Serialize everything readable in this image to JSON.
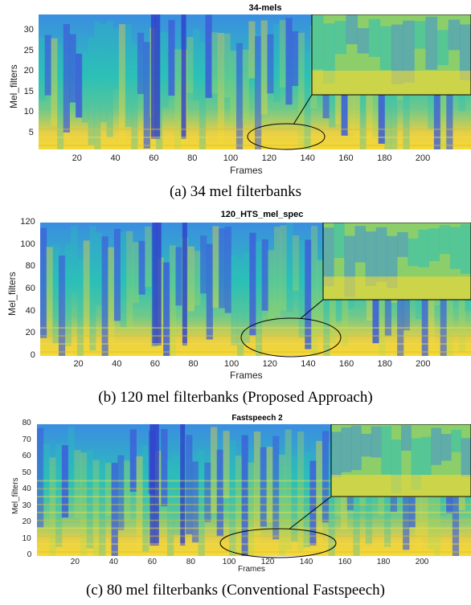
{
  "chart_data": [
    {
      "type": "heatmap",
      "title": "34-mels",
      "xlabel": "Frames",
      "ylabel": "Mel_filters",
      "x_ticks": [
        20,
        40,
        60,
        80,
        100,
        120,
        140,
        160,
        180,
        200
      ],
      "y_ticks": [
        5,
        10,
        15,
        20,
        25,
        30
      ],
      "xlim": [
        0,
        225
      ],
      "ylim": [
        1,
        34
      ],
      "caption": "(a) 34 mel filterbanks",
      "colors": {
        "low": "#3d5fd9",
        "mid": "#2cc0b8",
        "high": "#f6d935"
      }
    },
    {
      "type": "heatmap",
      "title": "120_HTS_mel_spec",
      "xlabel": "Frames",
      "ylabel": "Mel_filters",
      "x_ticks": [
        20,
        40,
        60,
        80,
        100,
        120,
        140,
        160,
        180,
        200
      ],
      "y_ticks": [
        0,
        20,
        40,
        60,
        80,
        100,
        120
      ],
      "xlim": [
        0,
        225
      ],
      "ylim": [
        0,
        120
      ],
      "caption": "(b) 120 mel filterbanks (Proposed Approach)",
      "colors": {
        "low": "#3d5fd9",
        "mid": "#2cc0b8",
        "high": "#f6d935"
      }
    },
    {
      "type": "heatmap",
      "title": "Fastspeech 2",
      "xlabel": "Frames",
      "ylabel": "Mel_filters",
      "x_ticks": [
        20,
        40,
        60,
        80,
        100,
        120,
        140,
        160,
        180,
        200
      ],
      "y_ticks": [
        0,
        10,
        20,
        30,
        40,
        50,
        60,
        70,
        80
      ],
      "xlim": [
        0,
        225
      ],
      "ylim": [
        0,
        80
      ],
      "caption": "(c) 80 mel filterbanks (Conventional Fastspeech)",
      "colors": {
        "low": "#3d5fd9",
        "mid": "#2cc0b8",
        "high": "#f6d935"
      }
    }
  ]
}
